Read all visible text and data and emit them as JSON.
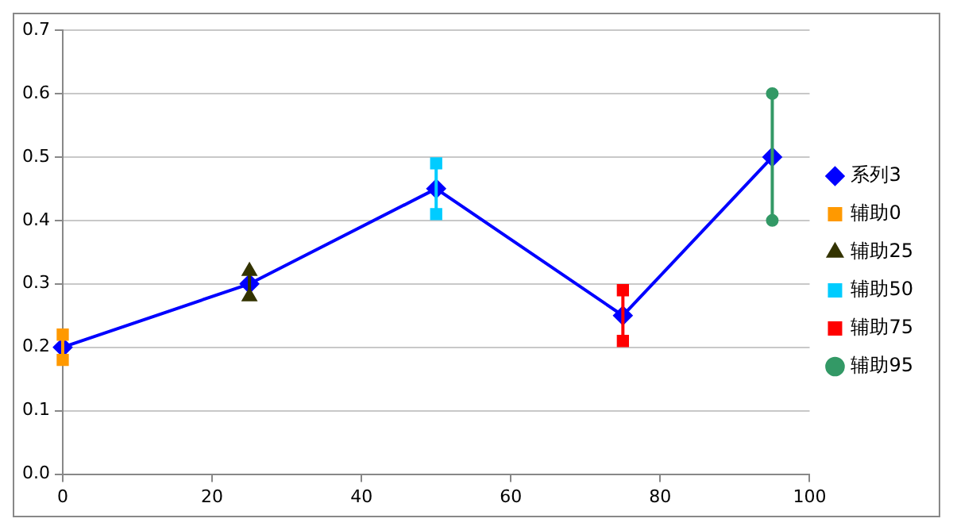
{
  "chart_data": {
    "type": "line",
    "xlim": [
      0,
      100
    ],
    "xticks": [
      0,
      20,
      40,
      60,
      80,
      100
    ],
    "ylim": [
      0,
      0.7
    ],
    "yticks": [
      {
        "value": 0,
        "label": "0.0"
      },
      0.1,
      0.2,
      0.3,
      0.4,
      0.5,
      0.6,
      0.7
    ],
    "grid": "y",
    "legend": "right",
    "line_style": "solid",
    "series": [
      {
        "name": "系列3",
        "color": "#0000ff",
        "marker": "diamond",
        "x": [
          0,
          25,
          50,
          75,
          95
        ],
        "values": [
          0.2,
          0.3,
          0.45,
          0.25,
          0.5
        ]
      },
      {
        "name": "辅助0",
        "color": "#ff9900",
        "marker": "square",
        "x": [
          0,
          0
        ],
        "values": [
          0.22,
          0.18
        ]
      },
      {
        "name": "辅助25",
        "color": "#333300",
        "marker": "triangle",
        "x": [
          25,
          25
        ],
        "values": [
          0.32,
          0.28
        ]
      },
      {
        "name": "辅助50",
        "color": "#00ccff",
        "marker": "square",
        "x": [
          50,
          50
        ],
        "values": [
          0.49,
          0.41
        ]
      },
      {
        "name": "辅助75",
        "color": "#ff0000",
        "marker": "square",
        "x": [
          75,
          75
        ],
        "values": [
          0.29,
          0.21
        ]
      },
      {
        "name": "辅助95",
        "color": "#339966",
        "marker": "circle",
        "x": [
          95,
          95
        ],
        "values": [
          0.6,
          0.4
        ]
      }
    ]
  }
}
